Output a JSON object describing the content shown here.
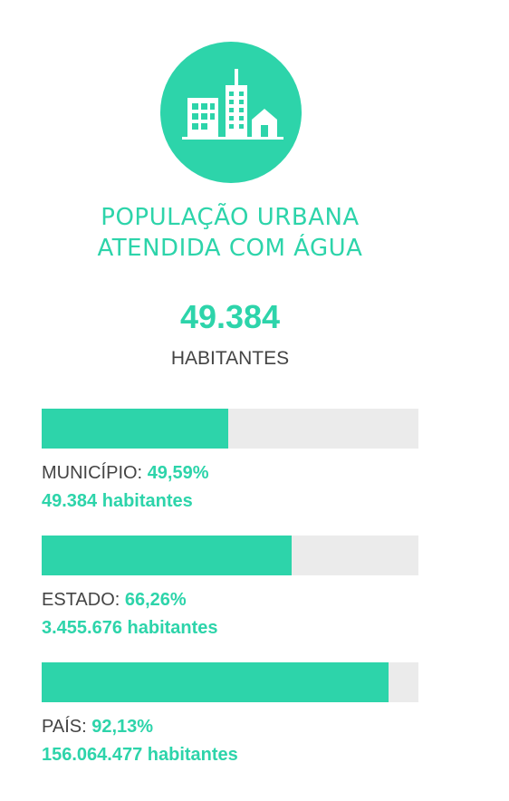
{
  "header": {
    "title_line1": "POPULAÇÃO URBANA",
    "title_line2": "ATENDIDA COM ÁGUA",
    "icon": "city-buildings-icon"
  },
  "summary": {
    "value": "49.384",
    "unit": "HABITANTES"
  },
  "colors": {
    "accent": "#2dd4aa",
    "track": "#ebebeb",
    "text": "#444444"
  },
  "stats": [
    {
      "label": "MUNICÍPIO:",
      "percent_text": "49,59%",
      "percent_value": 49.59,
      "count": "49.384 habitantes"
    },
    {
      "label": "ESTADO:",
      "percent_text": "66,26%",
      "percent_value": 66.26,
      "count": "3.455.676 habitantes"
    },
    {
      "label": "PAÍS:",
      "percent_text": "92,13%",
      "percent_value": 92.13,
      "count": "156.064.477 habitantes"
    }
  ]
}
